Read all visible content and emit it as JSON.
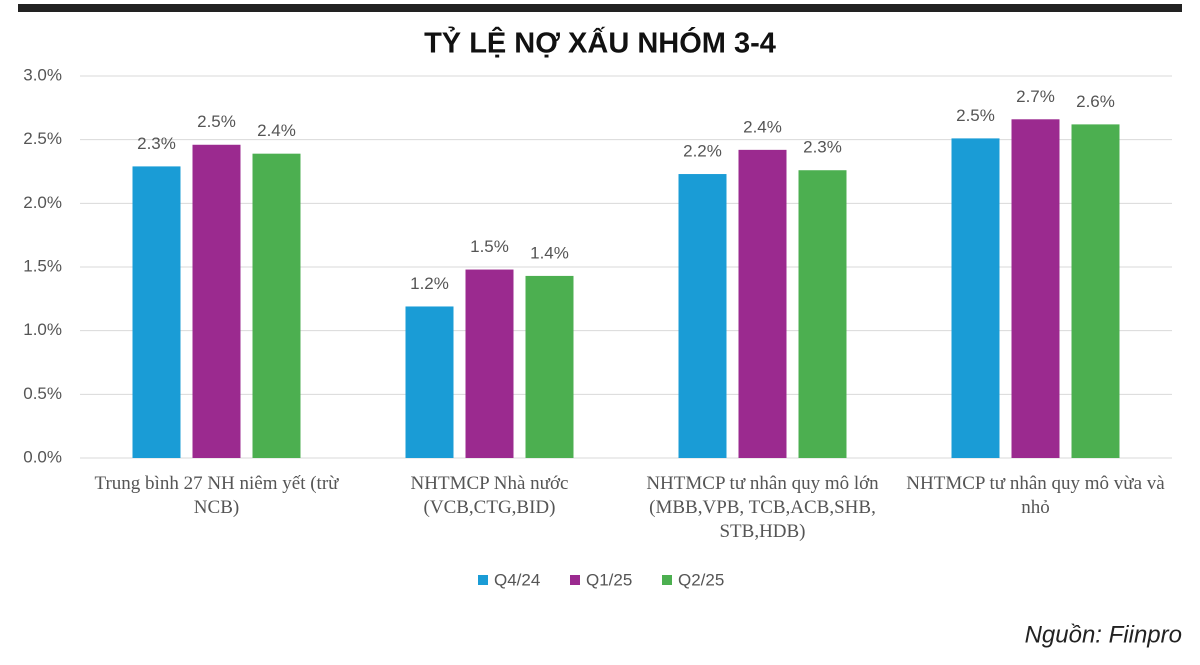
{
  "chart_data": {
    "type": "bar",
    "title": "TỶ LỆ NỢ XẤU NHÓM 3-4",
    "categories": [
      "Trung bình 27 NH niêm yết (trừ NCB)",
      "NHTMCP Nhà nước (VCB,CTG,BID)",
      "NHTMCP tư nhân quy mô lớn (MBB,VPB, TCB,ACB,SHB, STB,HDB)",
      "NHTMCP tư nhân quy mô vừa và nhỏ"
    ],
    "series": [
      {
        "name": "Q4/24",
        "color": "#1a9cd6",
        "values": [
          2.29,
          1.19,
          2.23,
          2.51
        ],
        "value_labels": [
          "2.3%",
          "1.2%",
          "2.2%",
          "2.5%"
        ]
      },
      {
        "name": "Q1/25",
        "color": "#9b2a8f",
        "values": [
          2.46,
          1.48,
          2.42,
          2.66
        ],
        "value_labels": [
          "2.5%",
          "1.5%",
          "2.4%",
          "2.7%"
        ]
      },
      {
        "name": "Q2/25",
        "color": "#4caf50",
        "values": [
          2.39,
          1.43,
          2.26,
          2.62
        ],
        "value_labels": [
          "2.4%",
          "1.4%",
          "2.3%",
          "2.6%"
        ]
      }
    ],
    "ylim": [
      0,
      3
    ],
    "yticks": [
      {
        "value": 0,
        "label": "0.0%"
      },
      {
        "value": 0.5,
        "label": "0.5%"
      },
      {
        "value": 1,
        "label": "1.0%"
      },
      {
        "value": 1.5,
        "label": "1.5%"
      },
      {
        "value": 2,
        "label": "2.0%"
      },
      {
        "value": 2.5,
        "label": "2.5%"
      },
      {
        "value": 3,
        "label": "3.0%"
      }
    ],
    "grid": true,
    "source": "Nguồn: Fiinpro"
  }
}
